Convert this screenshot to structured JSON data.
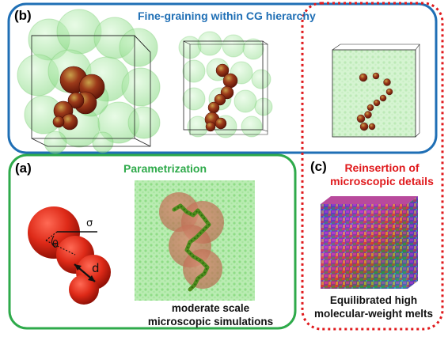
{
  "panels": {
    "b": {
      "label": "(b)",
      "title": "Fine-graining within CG hierarchy"
    },
    "a": {
      "label": "(a)",
      "title": "Parametrization",
      "caption_line1": "moderate scale",
      "caption_line2": "microscopic simulations",
      "symbols": {
        "sigma": "σ",
        "theta": "θ",
        "distance": "d"
      }
    },
    "c": {
      "label": "(c)",
      "title_line1": "Reinsertion of",
      "title_line2": "microscopic details",
      "caption_line1": "Equilibrated high",
      "caption_line2": "molecular-weight melts"
    }
  },
  "colors": {
    "blue_frame": "#1f6fb5",
    "green_frame": "#2eaa4a",
    "red_frame": "#e0191c",
    "blob_red": "#d42a1a",
    "solvent_green": "#9fe89a"
  }
}
